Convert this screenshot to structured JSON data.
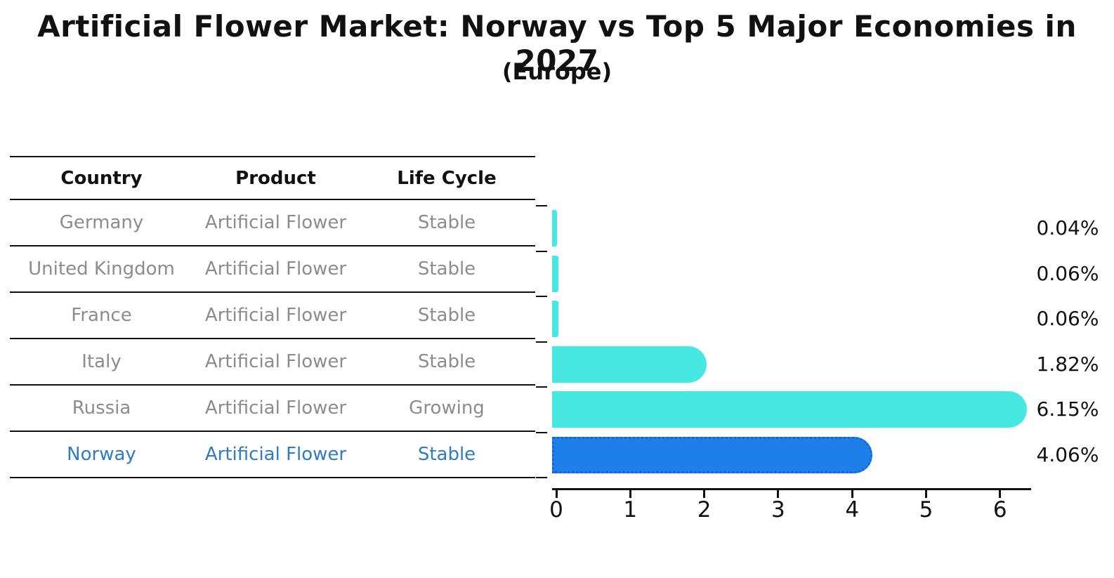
{
  "title": "Artificial Flower Market: Norway vs Top 5 Major Economies in 2027",
  "subtitle": "(Europe)",
  "table": {
    "headers": {
      "country": "Country",
      "product": "Product",
      "life_cycle": "Life Cycle"
    },
    "rows": [
      {
        "country": "Germany",
        "product": "Artificial Flower",
        "life_cycle": "Stable",
        "highlight": false
      },
      {
        "country": "United Kingdom",
        "product": "Artificial Flower",
        "life_cycle": "Stable",
        "highlight": false
      },
      {
        "country": "France",
        "product": "Artificial Flower",
        "life_cycle": "Stable",
        "highlight": false
      },
      {
        "country": "Italy",
        "product": "Artificial Flower",
        "life_cycle": "Stable",
        "highlight": false
      },
      {
        "country": "Russia",
        "product": "Artificial Flower",
        "life_cycle": "Growing",
        "highlight": false
      },
      {
        "country": "Norway",
        "product": "Artificial Flower",
        "life_cycle": "Stable",
        "highlight": true
      }
    ]
  },
  "chart_data": {
    "type": "bar",
    "orientation": "horizontal",
    "title": "Artificial Flower Market: Norway vs Top 5 Major Economies in 2027 (Europe)",
    "categories": [
      "Germany",
      "United Kingdom",
      "France",
      "Italy",
      "Russia",
      "Norway"
    ],
    "values": [
      0.04,
      0.06,
      0.06,
      1.82,
      6.15,
      4.06
    ],
    "value_labels": [
      "0.04%",
      "0.06%",
      "0.06%",
      "1.82%",
      "6.15%",
      "4.06%"
    ],
    "x_ticks": [
      "0",
      "1",
      "2",
      "3",
      "4",
      "5",
      "6"
    ],
    "xlim": [
      0,
      6.5
    ],
    "grid": false,
    "legend": false,
    "bar_color": "#47E7E2",
    "highlight_index": 5,
    "highlight_color": "#1E7FE8",
    "highlight_border_color": "#1565D6"
  },
  "colors": {
    "muted_text": "#8C8C8C",
    "highlight_text": "#2F7BC6",
    "axis": "#111111"
  }
}
